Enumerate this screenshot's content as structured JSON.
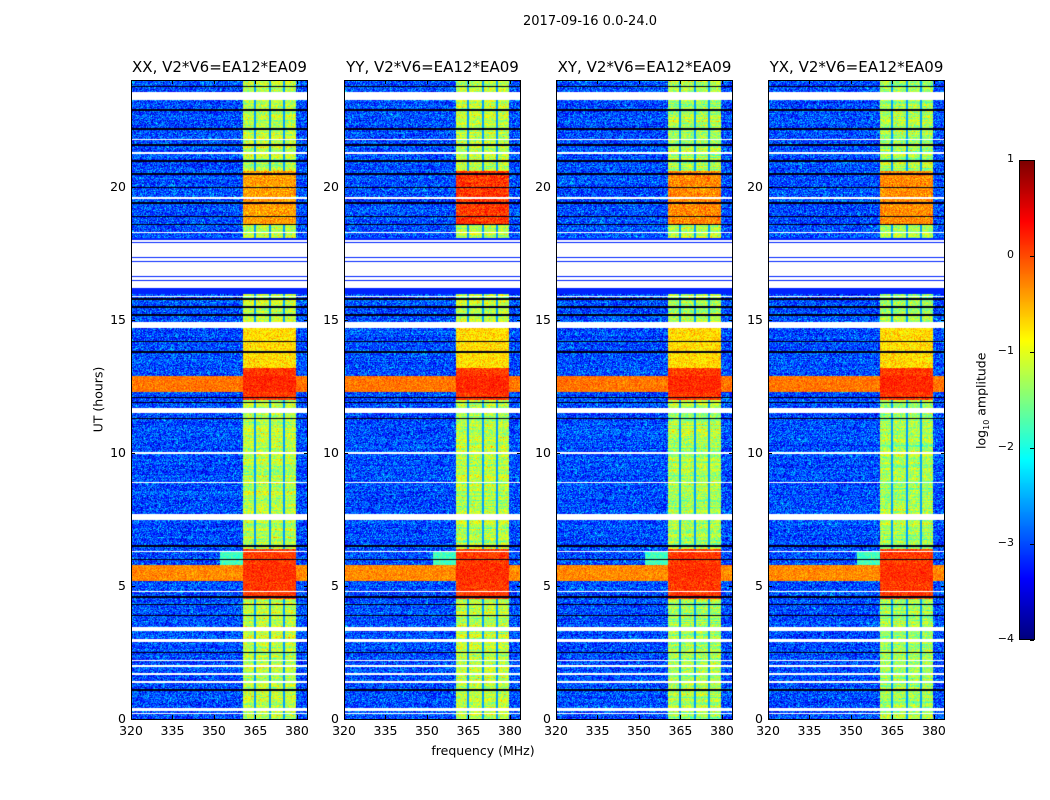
{
  "chart_data": {
    "type": "heatmap",
    "title": "2017-09-16 0.0-24.0",
    "xlabel": "frequency (MHz)",
    "ylabel": "UT (hours)",
    "xlim": [
      320,
      384
    ],
    "ylim": [
      0,
      24
    ],
    "xticks": [
      320,
      335,
      350,
      365,
      380
    ],
    "yticks": [
      0,
      5,
      10,
      15,
      20
    ],
    "panels": [
      {
        "title": "XX, V2*V6=EA12*EA09",
        "rfi_level": -1.2,
        "block_level_19h": -0.4
      },
      {
        "title": "YY, V2*V6=EA12*EA09",
        "rfi_level": -1.2,
        "block_level_19h": 0.1
      },
      {
        "title": "XY, V2*V6=EA12*EA09",
        "rfi_level": -1.3,
        "block_level_19h": -0.3
      },
      {
        "title": "YX, V2*V6=EA12*EA09",
        "rfi_level": -1.3,
        "block_level_19h": -0.3
      }
    ],
    "background_level": -3.0,
    "rfi_band_mhz": [
      360.5,
      380
    ],
    "subband_edges_mhz": [
      365,
      370.5,
      375.5
    ],
    "strong_rows_ut": [
      [
        5.2,
        5.8,
        0.0
      ],
      [
        12.3,
        12.9,
        0.1
      ]
    ],
    "flagged_ut": [
      [
        16.2,
        18.0
      ],
      [
        23.3,
        23.6
      ],
      [
        14.7,
        14.9
      ],
      [
        11.5,
        11.7
      ],
      [
        7.5,
        7.7
      ],
      [
        3.3,
        3.45
      ],
      [
        2.9,
        3.0
      ],
      [
        0.3,
        0.4
      ]
    ],
    "colorbar": {
      "label": "log10 amplitude",
      "label_main": "log",
      "label_sub": "10",
      "label_rest": " amplitude",
      "range": [
        -4,
        1
      ],
      "ticks": [
        "1",
        "0",
        "−1",
        "−2",
        "−3",
        "−4"
      ],
      "colormap": "jet"
    }
  }
}
